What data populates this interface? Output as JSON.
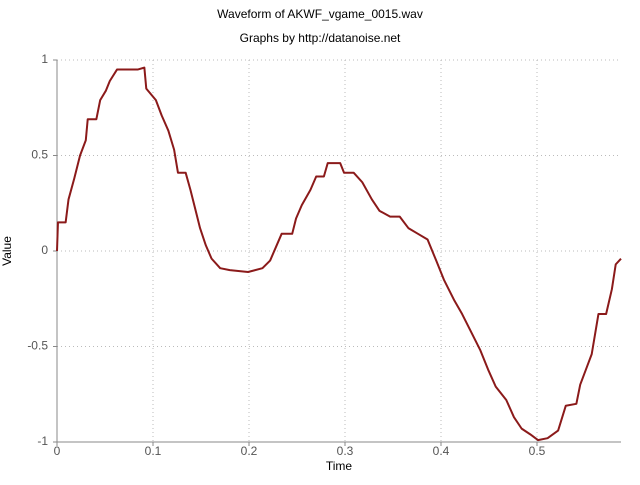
{
  "chart_data": {
    "type": "line",
    "title": "Waveform of AKWF_vgame_0015.wav",
    "subtitle": "Graphs by http://datanoise.net",
    "x_label": "Time",
    "y_label": "Value",
    "x": [
      0,
      0.001,
      0.009,
      0.012,
      0.018,
      0.024,
      0.03,
      0.032,
      0.041,
      0.045,
      0.051,
      0.055,
      0.0625,
      0.072,
      0.084,
      0.091,
      0.093,
      0.103,
      0.109,
      0.116,
      0.122,
      0.126,
      0.134,
      0.139,
      0.145,
      0.149,
      0.155,
      0.161,
      0.17,
      0.18,
      0.199,
      0.214,
      0.222,
      0.228,
      0.234,
      0.245,
      0.249,
      0.255,
      0.264,
      0.27,
      0.278,
      0.282,
      0.295,
      0.299,
      0.309,
      0.318,
      0.328,
      0.336,
      0.347,
      0.357,
      0.366,
      0.376,
      0.386,
      0.395,
      0.403,
      0.414,
      0.422,
      0.43,
      0.441,
      0.449,
      0.457,
      0.468,
      0.476,
      0.484,
      0.493,
      0.501,
      0.511,
      0.522,
      0.53,
      0.541,
      0.545,
      0.551,
      0.557,
      0.564,
      0.572,
      0.578,
      0.582,
      0.5875
    ],
    "series": [
      {
        "name": "Value",
        "color": "#8b1a1a",
        "values": [
          0,
          0.15,
          0.15,
          0.27,
          0.38,
          0.5,
          0.58,
          0.69,
          0.69,
          0.79,
          0.84,
          0.89,
          0.95,
          0.95,
          0.95,
          0.96,
          0.85,
          0.79,
          0.71,
          0.63,
          0.53,
          0.41,
          0.41,
          0.32,
          0.2,
          0.12,
          0.03,
          -0.04,
          -0.09,
          -0.1,
          -0.11,
          -0.09,
          -0.05,
          0.02,
          0.09,
          0.09,
          0.17,
          0.24,
          0.32,
          0.39,
          0.39,
          0.46,
          0.46,
          0.41,
          0.41,
          0.36,
          0.27,
          0.21,
          0.18,
          0.18,
          0.12,
          0.09,
          0.06,
          -0.05,
          -0.15,
          -0.26,
          -0.33,
          -0.41,
          -0.52,
          -0.62,
          -0.71,
          -0.78,
          -0.87,
          -0.93,
          -0.96,
          -0.99,
          -0.98,
          -0.94,
          -0.81,
          -0.8,
          -0.7,
          -0.62,
          -0.54,
          -0.33,
          -0.33,
          -0.2,
          -0.07,
          -0.04
        ]
      }
    ],
    "xlim": [
      0,
      0.5875
    ],
    "ylim": [
      -1,
      1
    ],
    "xticks": [
      0,
      0.1,
      0.2,
      0.3,
      0.4,
      0.5
    ],
    "yticks": [
      -1,
      -0.5,
      0,
      0.5,
      1
    ],
    "grid": true
  }
}
